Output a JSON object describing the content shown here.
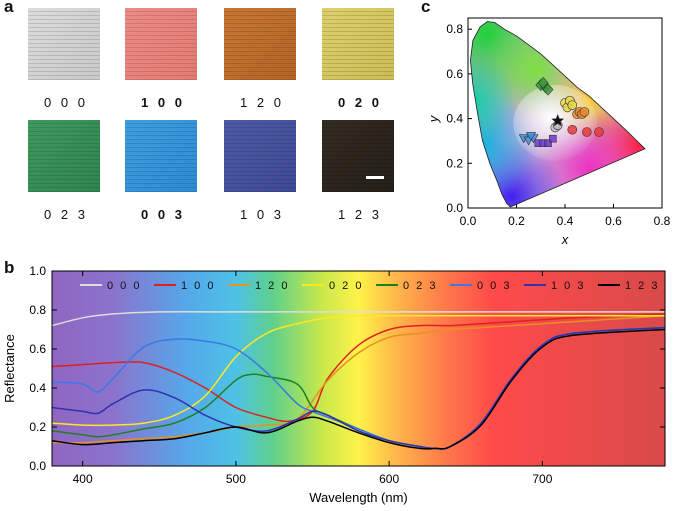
{
  "panels": {
    "a": "a",
    "b": "b",
    "c": "c"
  },
  "swatches": [
    {
      "label": "0 0 0",
      "bold": false,
      "color": "#dcdcdc",
      "color2": "#c9c9c9"
    },
    {
      "label": "1 0 0",
      "bold": true,
      "color": "#ee8c86",
      "color2": "#e47a72"
    },
    {
      "label": "1 2 0",
      "bold": false,
      "color": "#c87632",
      "color2": "#b36526"
    },
    {
      "label": "0 2 0",
      "bold": true,
      "color": "#ddd06c",
      "color2": "#cbbd55"
    },
    {
      "label": "0 2 3",
      "bold": false,
      "color": "#3f9a5e",
      "color2": "#2f8550"
    },
    {
      "label": "0 0 3",
      "bold": true,
      "color": "#3f9ee0",
      "color2": "#2d8bd3"
    },
    {
      "label": "1 0 3",
      "bold": false,
      "color": "#4f5aa6",
      "color2": "#3f4a94"
    },
    {
      "label": "1 2 3",
      "bold": false,
      "color": "#332c22",
      "color2": "#241f18"
    }
  ],
  "chart_data": [
    {
      "type": "scatter",
      "panel": "c",
      "xlabel": "x",
      "ylabel": "y",
      "xlim": [
        0.0,
        0.8
      ],
      "ylim": [
        0.0,
        0.85
      ],
      "xticks": [
        "0.0",
        "0.2",
        "0.4",
        "0.6",
        "0.8"
      ],
      "yticks": [
        "0.0",
        "0.2",
        "0.4",
        "0.6",
        "0.8"
      ],
      "series": [
        {
          "marker": "diamond",
          "color": "#3a9a3a",
          "points": [
            [
              0.3,
              0.55
            ],
            [
              0.32,
              0.54
            ],
            [
              0.33,
              0.53
            ],
            [
              0.31,
              0.56
            ]
          ]
        },
        {
          "marker": "circle",
          "color": "#e8d84a",
          "points": [
            [
              0.4,
              0.47
            ],
            [
              0.41,
              0.45
            ],
            [
              0.42,
              0.48
            ],
            [
              0.43,
              0.46
            ]
          ]
        },
        {
          "marker": "circle",
          "color": "#e88a30",
          "points": [
            [
              0.45,
              0.42
            ],
            [
              0.46,
              0.43
            ],
            [
              0.47,
              0.42
            ],
            [
              0.48,
              0.43
            ]
          ]
        },
        {
          "marker": "circle",
          "color": "#e83a3a",
          "points": [
            [
              0.43,
              0.35
            ],
            [
              0.49,
              0.34
            ],
            [
              0.54,
              0.34
            ]
          ]
        },
        {
          "marker": "circle",
          "color": "#bdbdbd",
          "points": [
            [
              0.36,
              0.36
            ],
            [
              0.37,
              0.37
            ]
          ]
        },
        {
          "marker": "triangle-down",
          "color": "#3f8fe0",
          "points": [
            [
              0.23,
              0.31
            ],
            [
              0.25,
              0.3
            ],
            [
              0.27,
              0.31
            ],
            [
              0.26,
              0.32
            ]
          ]
        },
        {
          "marker": "square",
          "color": "#6a3ac8",
          "points": [
            [
              0.29,
              0.29
            ],
            [
              0.31,
              0.29
            ],
            [
              0.33,
              0.29
            ],
            [
              0.35,
              0.31
            ]
          ]
        },
        {
          "marker": "star",
          "color": "#111111",
          "points": [
            [
              0.37,
              0.39
            ]
          ]
        }
      ]
    },
    {
      "type": "line",
      "panel": "b",
      "xlabel": "Wavelength (nm)",
      "ylabel": "Reflectance",
      "xlim": [
        380,
        780
      ],
      "ylim": [
        0.0,
        1.0
      ],
      "xticks": [
        "400",
        "500",
        "600",
        "700"
      ],
      "yticks": [
        "0.0",
        "0.2",
        "0.4",
        "0.6",
        "0.8",
        "1.0"
      ],
      "legend_position": "top",
      "series": [
        {
          "name": "0 0 0",
          "color": "#dddddd",
          "x": [
            380,
            400,
            420,
            450,
            500,
            550,
            600,
            650,
            700,
            780
          ],
          "values": [
            0.72,
            0.76,
            0.78,
            0.79,
            0.79,
            0.79,
            0.79,
            0.79,
            0.79,
            0.79
          ]
        },
        {
          "name": "1 0 0",
          "color": "#e02020",
          "x": [
            380,
            400,
            420,
            440,
            460,
            480,
            500,
            520,
            535,
            550,
            560,
            580,
            600,
            620,
            640,
            660,
            680,
            700,
            720,
            780
          ],
          "values": [
            0.51,
            0.52,
            0.53,
            0.53,
            0.48,
            0.4,
            0.3,
            0.25,
            0.23,
            0.28,
            0.45,
            0.62,
            0.7,
            0.72,
            0.72,
            0.73,
            0.74,
            0.75,
            0.76,
            0.78
          ]
        },
        {
          "name": "1 2 0",
          "color": "#e89020",
          "x": [
            380,
            400,
            420,
            440,
            460,
            480,
            500,
            520,
            540,
            560,
            580,
            600,
            620,
            640,
            660,
            680,
            700,
            720,
            780
          ],
          "values": [
            0.12,
            0.12,
            0.13,
            0.14,
            0.15,
            0.17,
            0.2,
            0.21,
            0.24,
            0.44,
            0.58,
            0.66,
            0.68,
            0.7,
            0.71,
            0.72,
            0.73,
            0.74,
            0.77
          ]
        },
        {
          "name": "0 2 0",
          "color": "#ffe820",
          "x": [
            380,
            400,
            420,
            440,
            460,
            480,
            500,
            520,
            540,
            560,
            580,
            600,
            620,
            640,
            660,
            700,
            780
          ],
          "values": [
            0.22,
            0.21,
            0.21,
            0.22,
            0.26,
            0.36,
            0.56,
            0.68,
            0.73,
            0.76,
            0.77,
            0.77,
            0.77,
            0.77,
            0.77,
            0.77,
            0.77
          ]
        },
        {
          "name": "0 2 3",
          "color": "#208020",
          "x": [
            380,
            400,
            410,
            420,
            440,
            460,
            480,
            500,
            510,
            520,
            540,
            550,
            560,
            580,
            600,
            620,
            630,
            640,
            660,
            680,
            700,
            720,
            780
          ],
          "values": [
            0.18,
            0.16,
            0.15,
            0.16,
            0.19,
            0.22,
            0.3,
            0.44,
            0.47,
            0.46,
            0.42,
            0.3,
            0.26,
            0.19,
            0.13,
            0.1,
            0.09,
            0.1,
            0.22,
            0.45,
            0.62,
            0.68,
            0.71
          ]
        },
        {
          "name": "0 0 3",
          "color": "#3a78e8",
          "x": [
            380,
            400,
            410,
            420,
            440,
            460,
            480,
            500,
            520,
            540,
            550,
            560,
            580,
            600,
            620,
            630,
            640,
            660,
            680,
            700,
            720,
            780
          ],
          "values": [
            0.43,
            0.42,
            0.38,
            0.45,
            0.61,
            0.65,
            0.64,
            0.6,
            0.48,
            0.32,
            0.28,
            0.25,
            0.19,
            0.13,
            0.1,
            0.09,
            0.1,
            0.22,
            0.45,
            0.62,
            0.68,
            0.71
          ]
        },
        {
          "name": "1 0 3",
          "color": "#3030b0",
          "x": [
            380,
            400,
            410,
            420,
            440,
            460,
            480,
            500,
            520,
            540,
            550,
            560,
            580,
            600,
            620,
            630,
            640,
            660,
            680,
            700,
            720,
            780
          ],
          "values": [
            0.3,
            0.28,
            0.27,
            0.32,
            0.39,
            0.35,
            0.26,
            0.2,
            0.18,
            0.24,
            0.28,
            0.26,
            0.18,
            0.13,
            0.1,
            0.09,
            0.1,
            0.22,
            0.45,
            0.62,
            0.68,
            0.71
          ]
        },
        {
          "name": "1 2 3",
          "color": "#000000",
          "x": [
            380,
            400,
            420,
            440,
            460,
            480,
            500,
            520,
            540,
            550,
            560,
            580,
            600,
            620,
            630,
            640,
            660,
            680,
            700,
            720,
            780
          ],
          "values": [
            0.13,
            0.11,
            0.12,
            0.13,
            0.14,
            0.17,
            0.2,
            0.17,
            0.23,
            0.25,
            0.23,
            0.17,
            0.12,
            0.09,
            0.09,
            0.1,
            0.21,
            0.44,
            0.61,
            0.67,
            0.7
          ]
        }
      ]
    }
  ]
}
